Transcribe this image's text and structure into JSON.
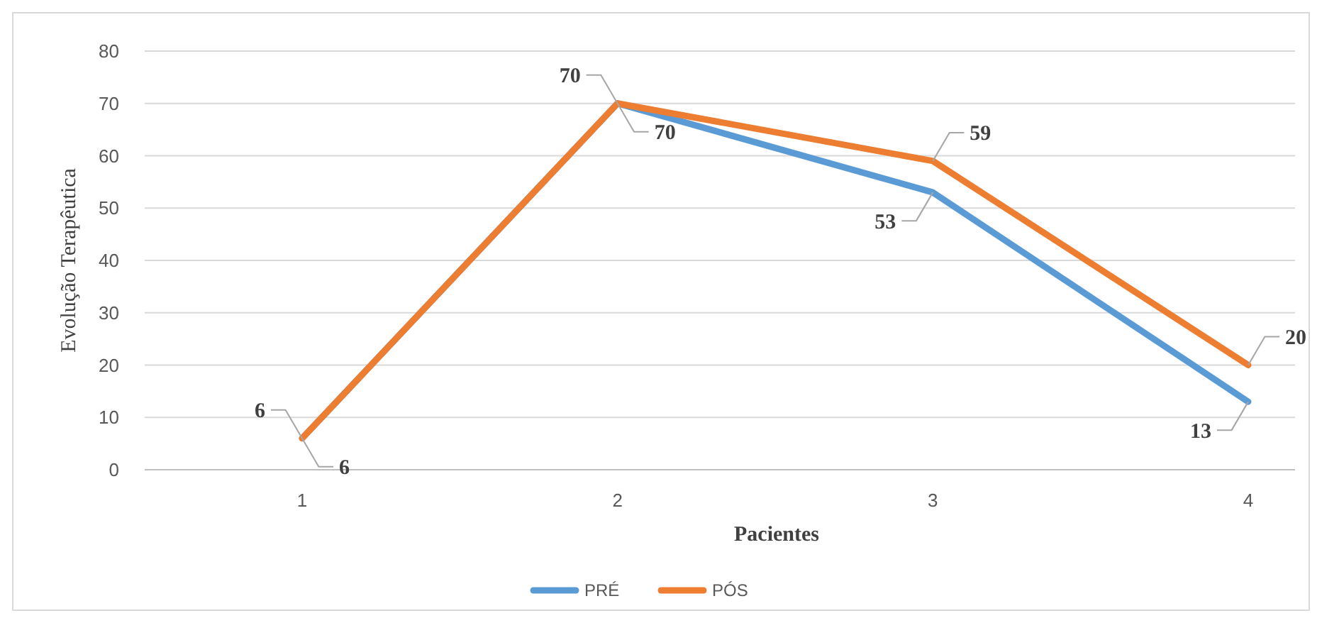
{
  "chart_data": {
    "type": "line",
    "xlabel": "Pacientes",
    "ylabel": "Evolução Terapêutica",
    "categories": [
      "1",
      "2",
      "3",
      "4"
    ],
    "series": [
      {
        "name": "PRÉ",
        "color": "#5b9bd5",
        "values": [
          6,
          70,
          53,
          13
        ]
      },
      {
        "name": "PÓS",
        "color": "#ed7d31",
        "values": [
          6,
          70,
          59,
          20
        ]
      }
    ],
    "ylim": [
      0,
      80
    ],
    "yticks": [
      0,
      10,
      20,
      30,
      40,
      50,
      60,
      70,
      80
    ],
    "grid": "y",
    "legend": "bottom",
    "data_labels": true,
    "marker": "none",
    "line_style": "solid"
  }
}
